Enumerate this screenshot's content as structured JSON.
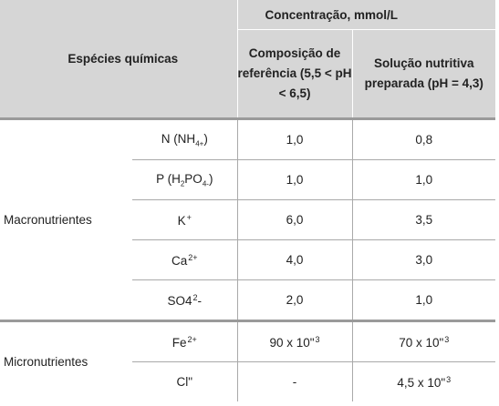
{
  "header": {
    "species_label": "Espécies químicas",
    "concentration_label": "Concentração, mmol/L",
    "reference_label": "Composição de referência (5,5 < pH < 6,5)",
    "solution_label": "Solução nutritiva preparada (pH = 4,3)"
  },
  "groups": {
    "macro": "Macronutrientes",
    "micro": "Micronutrientes"
  },
  "rows": [
    {
      "species": "N (NH",
      "species_sub": "4+",
      "species_tail": ")",
      "reference": "1,0",
      "solution": "0,8"
    },
    {
      "species": "P (H",
      "species_sub": "2",
      "species_mid": "PO",
      "species_sub2": "4-",
      "species_tail": ")",
      "reference": "1,0",
      "solution": "1,0"
    },
    {
      "species": "K",
      "species_sup": "+",
      "reference": "6,0",
      "solution": "3,5"
    },
    {
      "species": "Ca",
      "species_sup": "2+",
      "reference": "4,0",
      "solution": "3,0"
    },
    {
      "species": "SO4",
      "species_sup": "2",
      "species_tail": "-",
      "reference": "2,0",
      "solution": "1,0"
    },
    {
      "species": "Fe",
      "species_sup": "2+",
      "reference": "90 x 10\"",
      "reference_exp": "3",
      "solution": "70 x 10\"",
      "solution_exp": "3"
    },
    {
      "species": "Cl\"",
      "reference": "-",
      "solution": "4,5 x 10\"",
      "solution_exp": "3"
    }
  ]
}
